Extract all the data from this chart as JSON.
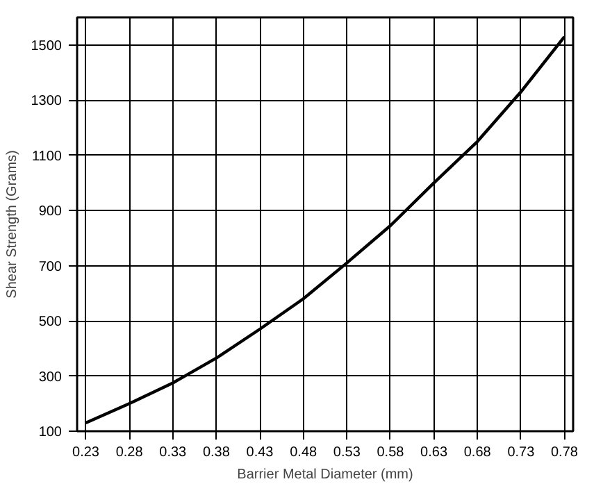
{
  "chart_data": {
    "type": "line",
    "xlabel": "Barrier Metal Diameter (mm)",
    "ylabel": "Shear Strength (Grams)",
    "x": [
      0.23,
      0.28,
      0.33,
      0.38,
      0.43,
      0.48,
      0.53,
      0.58,
      0.63,
      0.68,
      0.73,
      0.78
    ],
    "series": [
      {
        "color": "#000000",
        "values": [
          130,
          200,
          275,
          365,
          470,
          580,
          710,
          845,
          1000,
          1150,
          1330,
          1530
        ]
      }
    ],
    "xlim": [
      0.22,
      0.79
    ],
    "ylim": [
      100,
      1600
    ],
    "xticks": [
      0.23,
      0.28,
      0.33,
      0.38,
      0.43,
      0.48,
      0.53,
      0.58,
      0.63,
      0.68,
      0.73,
      0.78
    ],
    "yticks": [
      100,
      300,
      500,
      700,
      900,
      1100,
      1300,
      1500
    ],
    "grid": true,
    "marker": "none",
    "line_style": "solid"
  }
}
